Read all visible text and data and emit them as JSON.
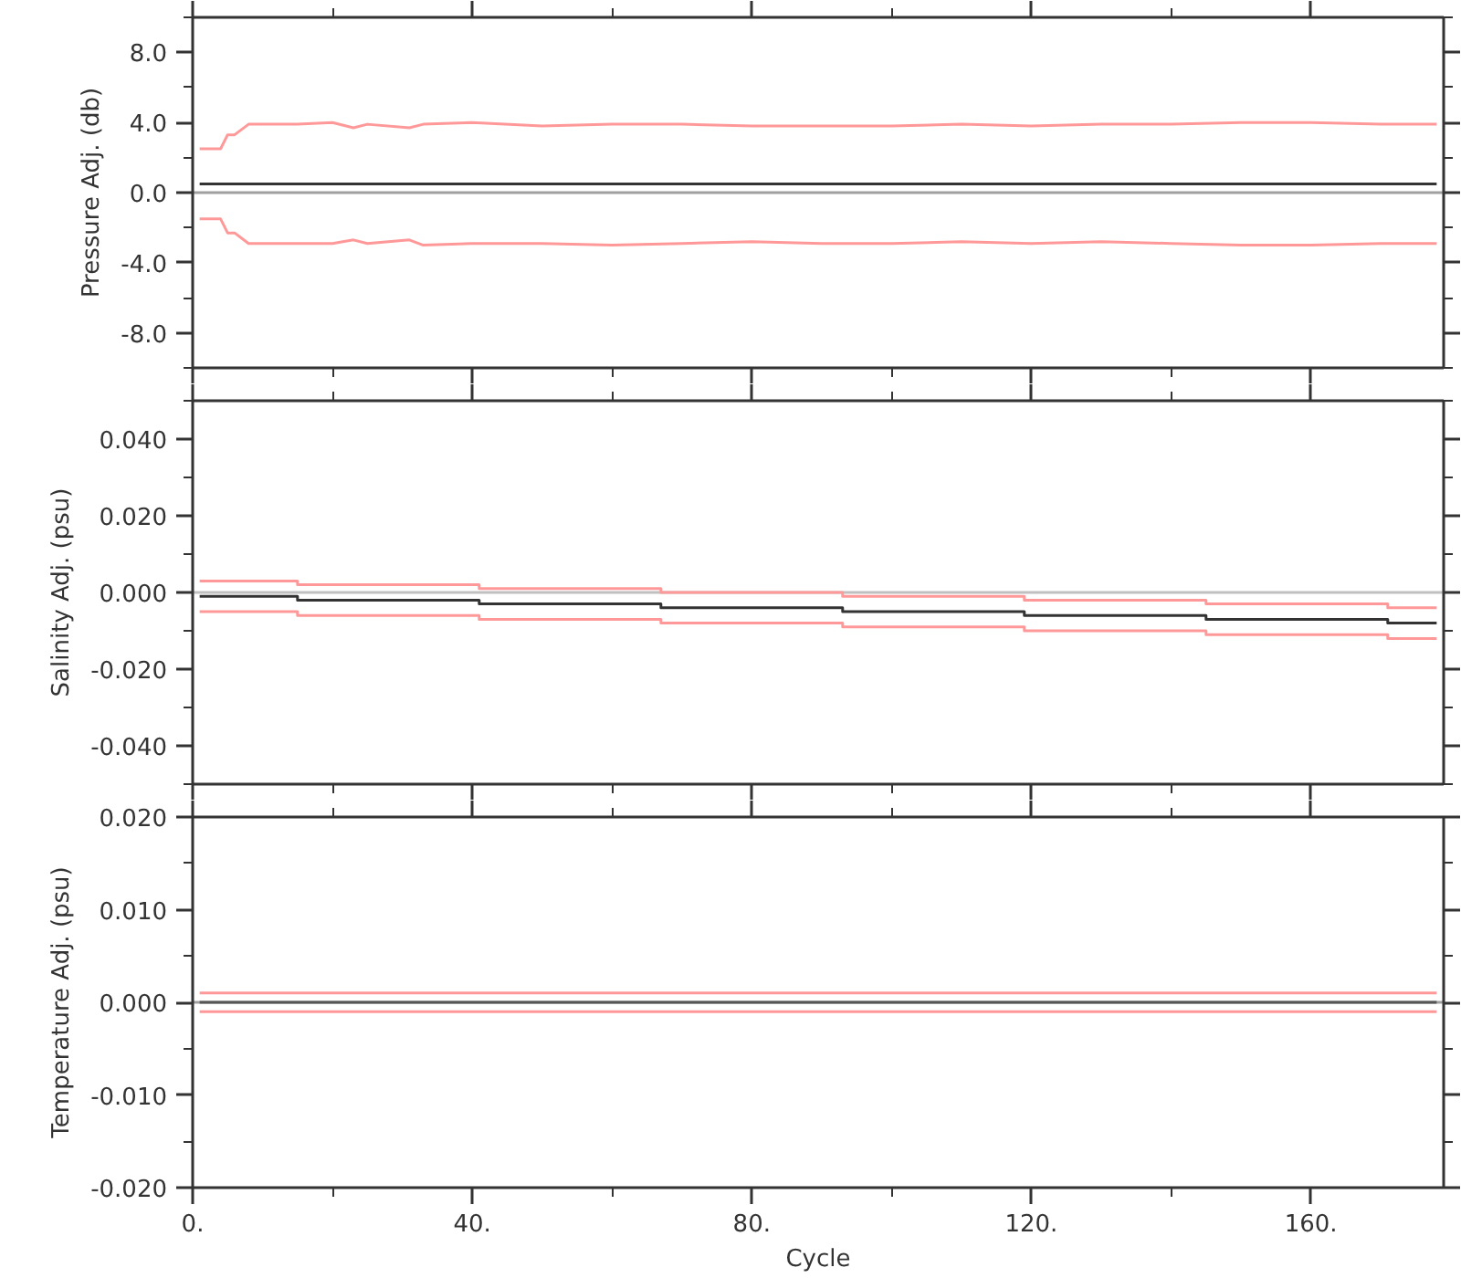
{
  "chart_data": [
    {
      "type": "line",
      "ylabel": "Pressure Adj. (db)",
      "xlim": [
        0,
        179
      ],
      "xticks": [
        0,
        {
          "value": 20,
          "label": null
        },
        40,
        {
          "value": 60,
          "label": null
        },
        80,
        {
          "value": 100,
          "label": null
        },
        120,
        {
          "value": 140,
          "label": null
        },
        160
      ],
      "ylim": [
        -10,
        10
      ],
      "yticks": [
        {
          "value": -10,
          "label": null
        },
        {
          "value": -8,
          "label": "-8.0"
        },
        {
          "value": -6,
          "label": null
        },
        {
          "value": -4,
          "label": "-4.0"
        },
        {
          "value": -2,
          "label": null
        },
        {
          "value": 0,
          "label": "0.0"
        },
        {
          "value": 2,
          "label": null
        },
        {
          "value": 4,
          "label": "4.0"
        },
        {
          "value": 6,
          "label": null
        },
        {
          "value": 8,
          "label": "8.0"
        },
        {
          "value": 10,
          "label": null
        }
      ],
      "tick_labels": "y",
      "ref_lines": [
        {
          "axis": "y",
          "value": 0,
          "color": "#a0a0a0"
        }
      ],
      "series": [
        {
          "color": "#ff9999",
          "x": [
            1,
            4,
            5,
            6,
            8,
            10,
            15,
            20,
            23,
            25,
            31,
            33,
            40,
            50,
            60,
            70,
            80,
            90,
            100,
            110,
            120,
            130,
            140,
            150,
            160,
            170,
            178
          ],
          "values": [
            2.5,
            2.5,
            3.3,
            3.3,
            3.9,
            3.9,
            3.9,
            4.0,
            3.7,
            3.9,
            3.7,
            3.9,
            4.0,
            3.8,
            3.9,
            3.9,
            3.8,
            3.8,
            3.8,
            3.9,
            3.8,
            3.9,
            3.9,
            4.0,
            4.0,
            3.9,
            3.9
          ]
        },
        {
          "color": "#ff9999",
          "x": [
            1,
            4,
            5,
            6,
            8,
            10,
            15,
            20,
            23,
            25,
            31,
            33,
            40,
            50,
            60,
            70,
            80,
            90,
            100,
            110,
            120,
            130,
            140,
            150,
            160,
            170,
            178
          ],
          "values": [
            -1.5,
            -1.5,
            -2.3,
            -2.3,
            -2.9,
            -2.9,
            -2.9,
            -2.9,
            -2.7,
            -2.9,
            -2.7,
            -3.0,
            -2.9,
            -2.9,
            -3.0,
            -2.9,
            -2.8,
            -2.9,
            -2.9,
            -2.8,
            -2.9,
            -2.8,
            -2.9,
            -3.0,
            -3.0,
            -2.9,
            -2.9
          ]
        },
        {
          "color": "#333333",
          "x": [
            1,
            178
          ],
          "values": [
            0.5,
            0.5
          ]
        }
      ]
    },
    {
      "type": "step",
      "ylabel": "Salinity Adj. (psu)",
      "xlim": [
        0,
        179
      ],
      "xticks": [
        0,
        {
          "value": 20,
          "label": null
        },
        40,
        {
          "value": 60,
          "label": null
        },
        80,
        {
          "value": 100,
          "label": null
        },
        120,
        {
          "value": 140,
          "label": null
        },
        160
      ],
      "ylim": [
        -0.05,
        0.05
      ],
      "yticks": [
        {
          "value": -0.05,
          "label": null
        },
        {
          "value": -0.04,
          "label": "-0.040"
        },
        {
          "value": -0.03,
          "label": null
        },
        {
          "value": -0.02,
          "label": "-0.020"
        },
        {
          "value": -0.01,
          "label": null
        },
        {
          "value": 0,
          "label": "0.000"
        },
        {
          "value": 0.01,
          "label": null
        },
        {
          "value": 0.02,
          "label": "0.020"
        },
        {
          "value": 0.03,
          "label": null
        },
        {
          "value": 0.04,
          "label": "0.040"
        },
        {
          "value": 0.05,
          "label": null
        }
      ],
      "tick_labels": "y",
      "ref_lines": [
        {
          "axis": "y",
          "value": 0,
          "color": "#c0c0c0"
        }
      ],
      "series": [
        {
          "color": "#ff9999",
          "x": [
            1,
            15,
            41,
            67,
            93,
            119,
            145,
            171,
            178
          ],
          "values": [
            0.003,
            0.002,
            0.001,
            0.0,
            -0.001,
            -0.002,
            -0.003,
            -0.004,
            -0.004
          ]
        },
        {
          "color": "#ff9999",
          "x": [
            1,
            15,
            41,
            67,
            93,
            119,
            145,
            171,
            178
          ],
          "values": [
            -0.005,
            -0.006,
            -0.007,
            -0.008,
            -0.009,
            -0.01,
            -0.011,
            -0.012,
            -0.012
          ]
        },
        {
          "color": "#333333",
          "x": [
            1,
            15,
            41,
            67,
            93,
            119,
            145,
            171,
            178
          ],
          "values": [
            -0.001,
            -0.002,
            -0.003,
            -0.004,
            -0.005,
            -0.006,
            -0.007,
            -0.008,
            -0.008
          ]
        }
      ]
    },
    {
      "type": "line",
      "ylabel": "Temperature Adj. (psu)",
      "xlabel": "Cycle",
      "xlim": [
        0,
        179
      ],
      "xticks": [
        {
          "value": 0,
          "label": "0."
        },
        {
          "value": 20,
          "label": null
        },
        {
          "value": 40,
          "label": "40."
        },
        {
          "value": 60,
          "label": null
        },
        {
          "value": 80,
          "label": "80."
        },
        {
          "value": 100,
          "label": null
        },
        {
          "value": 120,
          "label": "120."
        },
        {
          "value": 140,
          "label": null
        },
        {
          "value": 160,
          "label": "160."
        }
      ],
      "ylim": [
        -0.02,
        0.02
      ],
      "yticks": [
        {
          "value": -0.02,
          "label": "-0.020"
        },
        {
          "value": -0.015,
          "label": null
        },
        {
          "value": -0.01,
          "label": "-0.010"
        },
        {
          "value": -0.005,
          "label": null
        },
        {
          "value": 0,
          "label": "0.000"
        },
        {
          "value": 0.005,
          "label": null
        },
        {
          "value": 0.01,
          "label": "0.010"
        },
        {
          "value": 0.015,
          "label": null
        },
        {
          "value": 0.02,
          "label": "0.020"
        }
      ],
      "ref_lines": [
        {
          "axis": "y",
          "value": 0,
          "color": "#a0a0a0"
        }
      ],
      "series": [
        {
          "color": "#ff9999",
          "x": [
            1,
            178
          ],
          "values": [
            0.001,
            0.001
          ]
        },
        {
          "color": "#ff9999",
          "x": [
            1,
            178
          ],
          "values": [
            -0.001,
            -0.001
          ]
        },
        {
          "color": "#555555",
          "x": [
            1,
            178
          ],
          "values": [
            0.0,
            0.0
          ]
        }
      ]
    }
  ]
}
